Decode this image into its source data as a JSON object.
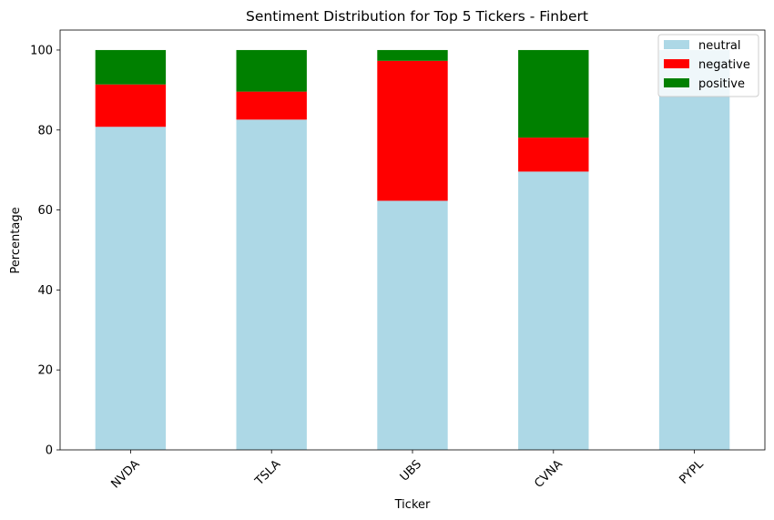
{
  "chart_data": {
    "type": "bar",
    "stacked": true,
    "title": "Sentiment Distribution for Top 5 Tickers - Finbert",
    "xlabel": "Ticker",
    "ylabel": "Percentage",
    "categories": [
      "NVDA",
      "TSLA",
      "UBS",
      "CVNA",
      "PYPL"
    ],
    "ylim": [
      0,
      105
    ],
    "yticks": [
      0,
      20,
      40,
      60,
      80,
      100
    ],
    "series": [
      {
        "name": "neutral",
        "color": "#add8e6",
        "values": [
          80.8,
          82.6,
          62.3,
          69.6,
          100.0
        ]
      },
      {
        "name": "negative",
        "color": "#ff0000",
        "values": [
          10.6,
          7.0,
          35.0,
          8.5,
          0.0
        ]
      },
      {
        "name": "positive",
        "color": "#008000",
        "values": [
          8.6,
          10.4,
          2.7,
          21.9,
          0.0
        ]
      }
    ],
    "legend_position": "top-right",
    "grid": false
  }
}
